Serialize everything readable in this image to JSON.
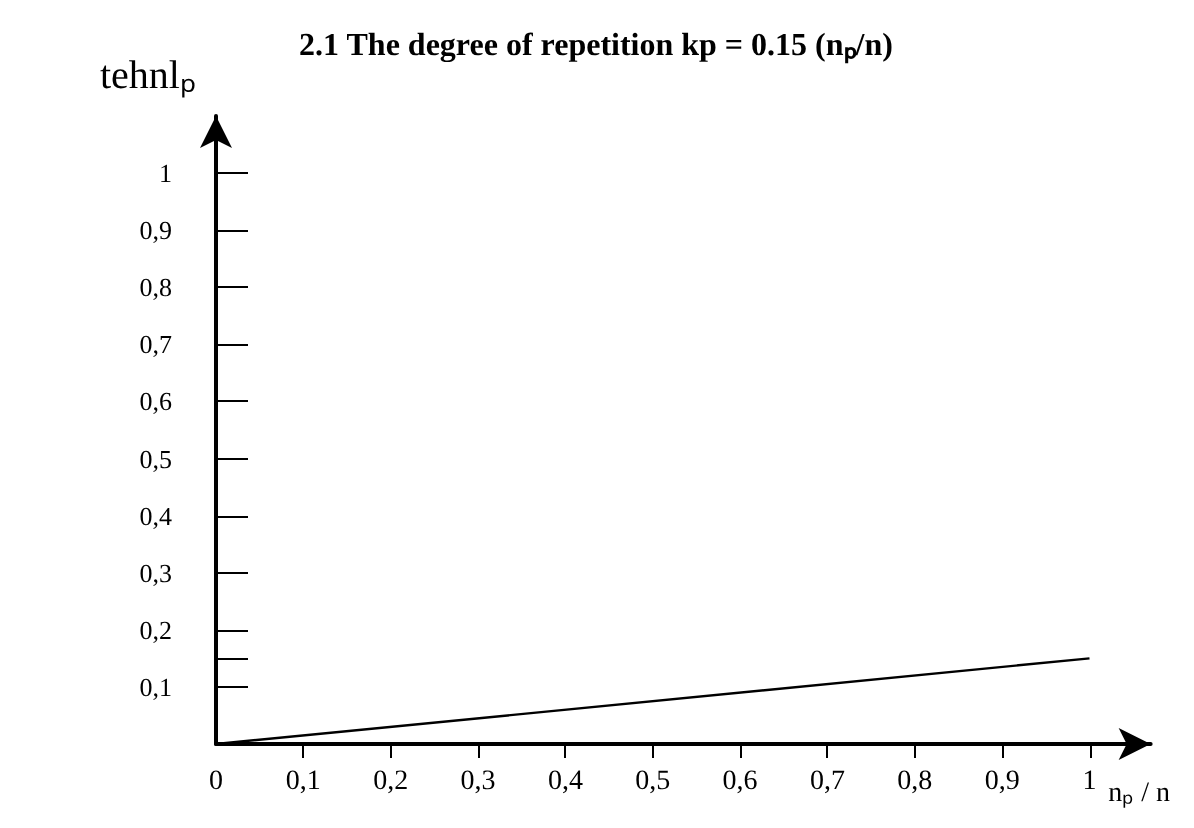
{
  "chart_data": {
    "type": "line",
    "title": "2.1 The degree of repetition kp = 0.15 (nₚ/n)",
    "xlabel": "nₚ / n",
    "ylabel": "tehnlₚ",
    "x": [
      0,
      1
    ],
    "values": [
      0,
      0.15
    ],
    "color": "#000000",
    "marker": "none",
    "line_style": "solid",
    "grid": false,
    "xlim": [
      0,
      1.07
    ],
    "ylim": [
      0,
      1.1
    ],
    "xticks": [
      0,
      {
        "value": 0.1,
        "label": "0,1"
      },
      {
        "value": 0.2,
        "label": "0,2"
      },
      {
        "value": 0.3,
        "label": "0,3"
      },
      {
        "value": 0.4,
        "label": "0,4"
      },
      {
        "value": 0.5,
        "label": "0,5"
      },
      {
        "value": 0.6,
        "label": "0,6"
      },
      {
        "value": 0.7,
        "label": "0,7"
      },
      {
        "value": 0.8,
        "label": "0,8"
      },
      {
        "value": 0.9,
        "label": "0,9"
      },
      1
    ],
    "yticks": [
      {
        "value": 0.1,
        "label": "0,1"
      },
      {
        "value": 0.15,
        "label": null
      },
      {
        "value": 0.2,
        "label": "0,2"
      },
      {
        "value": 0.3,
        "label": "0,3"
      },
      {
        "value": 0.4,
        "label": "0,4"
      },
      {
        "value": 0.5,
        "label": "0,5"
      },
      {
        "value": 0.6,
        "label": "0,6"
      },
      {
        "value": 0.7,
        "label": "0,7"
      },
      {
        "value": 0.8,
        "label": "0,8"
      },
      {
        "value": 0.9,
        "label": "0,9"
      },
      1
    ]
  }
}
